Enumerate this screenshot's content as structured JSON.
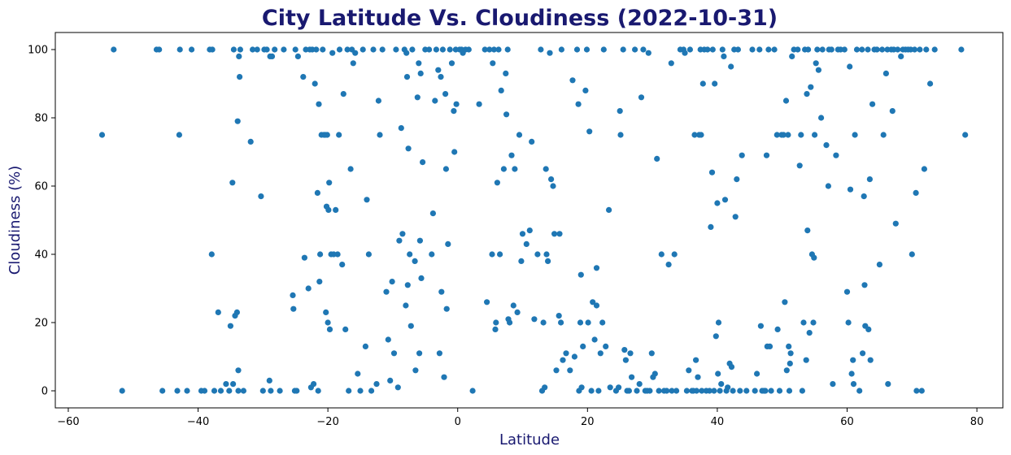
{
  "chart_data": {
    "type": "scatter",
    "title": "City Latitude Vs. Cloudiness (2022-10-31)",
    "xlabel": "Latitude",
    "ylabel": "Cloudiness (%)",
    "xlim": [
      -62,
      84
    ],
    "ylim": [
      -5,
      105
    ],
    "xticks": [
      -60,
      -40,
      -20,
      0,
      20,
      40,
      60,
      80
    ],
    "yticks": [
      0,
      20,
      40,
      60,
      80,
      100
    ],
    "grid": false,
    "marker_color": "#1f77b4",
    "points": [
      [
        -54.8,
        75
      ],
      [
        -53,
        100
      ],
      [
        -51.7,
        0
      ],
      [
        -46.4,
        100
      ],
      [
        -46,
        100
      ],
      [
        -45.5,
        0
      ],
      [
        -43.2,
        0
      ],
      [
        -42.9,
        75
      ],
      [
        -42.8,
        100
      ],
      [
        -41.7,
        0
      ],
      [
        -41,
        100
      ],
      [
        -39.5,
        0
      ],
      [
        -39,
        0
      ],
      [
        -38.2,
        100
      ],
      [
        -37.8,
        100
      ],
      [
        -37.9,
        40
      ],
      [
        -37.5,
        0
      ],
      [
        -36.9,
        23
      ],
      [
        -36.5,
        0
      ],
      [
        -35.7,
        2
      ],
      [
        -35.2,
        0
      ],
      [
        -35,
        19
      ],
      [
        -34.7,
        61
      ],
      [
        -34.5,
        100
      ],
      [
        -34.3,
        22
      ],
      [
        -34,
        23
      ],
      [
        -33.9,
        79
      ],
      [
        -33.6,
        92
      ],
      [
        -33.8,
        6
      ],
      [
        -33.7,
        98
      ],
      [
        -33.8,
        0
      ],
      [
        -33.5,
        100
      ],
      [
        -33,
        0
      ],
      [
        -34.6,
        2
      ],
      [
        -31.9,
        73
      ],
      [
        -31.6,
        100
      ],
      [
        -30.9,
        100
      ],
      [
        -30.3,
        57
      ],
      [
        -30,
        0
      ],
      [
        -29.8,
        100
      ],
      [
        -29.4,
        100
      ],
      [
        -29,
        3
      ],
      [
        -28.9,
        98
      ],
      [
        -28.8,
        0
      ],
      [
        -28.6,
        98
      ],
      [
        -28.2,
        100
      ],
      [
        -27.4,
        0
      ],
      [
        -26.8,
        100
      ],
      [
        -25.4,
        28
      ],
      [
        -25.3,
        24
      ],
      [
        -25.1,
        0
      ],
      [
        -25,
        100
      ],
      [
        -24.8,
        0
      ],
      [
        -24.6,
        98
      ],
      [
        -23.8,
        92
      ],
      [
        -23.6,
        39
      ],
      [
        -23.4,
        100
      ],
      [
        -23,
        30
      ],
      [
        -22.8,
        100
      ],
      [
        -22.6,
        1
      ],
      [
        -22.4,
        100
      ],
      [
        -22.2,
        2
      ],
      [
        -22,
        90
      ],
      [
        -21.8,
        100
      ],
      [
        -21.5,
        0
      ],
      [
        -21.6,
        58
      ],
      [
        -21.4,
        84
      ],
      [
        -21.3,
        32
      ],
      [
        -21.2,
        40
      ],
      [
        -21,
        75
      ],
      [
        -20.8,
        100
      ],
      [
        -20.6,
        75
      ],
      [
        -20.4,
        75
      ],
      [
        -20.3,
        23
      ],
      [
        -20.2,
        54
      ],
      [
        -20.1,
        75
      ],
      [
        -20.0,
        20
      ],
      [
        -19.9,
        53
      ],
      [
        -19.8,
        61
      ],
      [
        -19.7,
        18
      ],
      [
        -19.5,
        40
      ],
      [
        -19.3,
        99
      ],
      [
        -19.1,
        40
      ],
      [
        -18.8,
        53
      ],
      [
        -18.5,
        40
      ],
      [
        -18.3,
        75
      ],
      [
        -18.2,
        100
      ],
      [
        -17.8,
        37
      ],
      [
        -17.6,
        87
      ],
      [
        -17.3,
        18
      ],
      [
        -17,
        100
      ],
      [
        -16.8,
        0
      ],
      [
        -16.5,
        65
      ],
      [
        -16.3,
        100
      ],
      [
        -16.1,
        96
      ],
      [
        -15.8,
        99
      ],
      [
        -15.4,
        5
      ],
      [
        -15,
        0
      ],
      [
        -14.6,
        100
      ],
      [
        -14.2,
        13
      ],
      [
        -14.0,
        56
      ],
      [
        -13.7,
        40
      ],
      [
        -13.3,
        0
      ],
      [
        -13,
        100
      ],
      [
        -12.5,
        2
      ],
      [
        -12.2,
        85
      ],
      [
        -12,
        75
      ],
      [
        -11.6,
        100
      ],
      [
        -11,
        29
      ],
      [
        -10.7,
        15
      ],
      [
        -10.4,
        3
      ],
      [
        -10.1,
        32
      ],
      [
        -9.8,
        11
      ],
      [
        -9.5,
        100
      ],
      [
        -9.2,
        1
      ],
      [
        -9,
        44
      ],
      [
        -8.7,
        77
      ],
      [
        -8.5,
        46
      ],
      [
        -8.2,
        100
      ],
      [
        -8.0,
        25
      ],
      [
        -7.9,
        99
      ],
      [
        -7.8,
        92
      ],
      [
        -7.7,
        31
      ],
      [
        -7.6,
        71
      ],
      [
        -7.4,
        40
      ],
      [
        -7.2,
        19
      ],
      [
        -7,
        100
      ],
      [
        -6.6,
        38
      ],
      [
        -6.5,
        6
      ],
      [
        -6.2,
        86
      ],
      [
        -6.0,
        96
      ],
      [
        -5.9,
        11
      ],
      [
        -5.8,
        44
      ],
      [
        -5.7,
        93
      ],
      [
        -5.6,
        33
      ],
      [
        -5.4,
        67
      ],
      [
        -5,
        100
      ],
      [
        -4.4,
        100
      ],
      [
        -4.0,
        40
      ],
      [
        -3.8,
        52
      ],
      [
        -3.5,
        85
      ],
      [
        -3.3,
        100
      ],
      [
        -3.0,
        94
      ],
      [
        -2.8,
        11
      ],
      [
        -2.6,
        92
      ],
      [
        -2.5,
        29
      ],
      [
        -2.3,
        100
      ],
      [
        -2.1,
        4
      ],
      [
        -1.9,
        87
      ],
      [
        -1.8,
        65
      ],
      [
        -1.7,
        24
      ],
      [
        -1.5,
        43
      ],
      [
        -1.2,
        100
      ],
      [
        -0.9,
        96
      ],
      [
        -0.6,
        82
      ],
      [
        -0.5,
        70
      ],
      [
        -0.3,
        100
      ],
      [
        -0.2,
        84
      ],
      [
        0.3,
        100
      ],
      [
        0.6,
        100
      ],
      [
        0.8,
        99
      ],
      [
        1.2,
        100
      ],
      [
        1.7,
        100
      ],
      [
        2.3,
        0
      ],
      [
        3.3,
        84
      ],
      [
        4.2,
        100
      ],
      [
        4.5,
        26
      ],
      [
        4.9,
        100
      ],
      [
        5.3,
        40
      ],
      [
        5.4,
        96
      ],
      [
        5.6,
        100
      ],
      [
        5.8,
        18
      ],
      [
        5.9,
        20
      ],
      [
        6.1,
        61
      ],
      [
        6.3,
        100
      ],
      [
        6.5,
        40
      ],
      [
        6.7,
        88
      ],
      [
        7.1,
        65
      ],
      [
        7.4,
        93
      ],
      [
        7.5,
        81
      ],
      [
        7.7,
        100
      ],
      [
        7.8,
        21
      ],
      [
        8.0,
        20
      ],
      [
        8.3,
        69
      ],
      [
        8.6,
        25
      ],
      [
        8.8,
        65
      ],
      [
        9.2,
        23
      ],
      [
        9.5,
        75
      ],
      [
        9.8,
        38
      ],
      [
        10.0,
        46
      ],
      [
        10.6,
        43
      ],
      [
        11.1,
        47
      ],
      [
        11.4,
        73
      ],
      [
        11.8,
        21
      ],
      [
        12.3,
        40
      ],
      [
        12.8,
        100
      ],
      [
        13,
        0
      ],
      [
        13.2,
        20
      ],
      [
        13.4,
        1
      ],
      [
        13.6,
        65
      ],
      [
        13.7,
        40
      ],
      [
        13.9,
        38
      ],
      [
        14.2,
        99
      ],
      [
        14.4,
        62
      ],
      [
        14.7,
        60
      ],
      [
        14.9,
        46
      ],
      [
        15.2,
        6
      ],
      [
        15.6,
        22
      ],
      [
        15.7,
        46
      ],
      [
        15.9,
        20
      ],
      [
        16.0,
        100
      ],
      [
        16.2,
        9
      ],
      [
        16.7,
        11
      ],
      [
        17.3,
        6
      ],
      [
        17.7,
        91
      ],
      [
        18.0,
        10
      ],
      [
        18.4,
        100
      ],
      [
        18.6,
        84
      ],
      [
        18.7,
        0
      ],
      [
        18.9,
        20
      ],
      [
        19.0,
        34
      ],
      [
        19.1,
        1
      ],
      [
        19.3,
        13
      ],
      [
        19.7,
        88
      ],
      [
        19.9,
        100
      ],
      [
        20.1,
        20
      ],
      [
        20.3,
        76
      ],
      [
        20.6,
        0
      ],
      [
        20.8,
        26
      ],
      [
        21.1,
        15
      ],
      [
        21.4,
        36
      ],
      [
        21.4,
        25
      ],
      [
        21.7,
        0
      ],
      [
        22.0,
        11
      ],
      [
        22.3,
        20
      ],
      [
        22.5,
        100
      ],
      [
        22.8,
        13
      ],
      [
        23.3,
        53
      ],
      [
        23.5,
        1
      ],
      [
        24.4,
        0
      ],
      [
        24.8,
        1
      ],
      [
        25.0,
        82
      ],
      [
        25.1,
        75
      ],
      [
        25.5,
        100
      ],
      [
        25.7,
        12
      ],
      [
        25.9,
        9
      ],
      [
        26.1,
        0
      ],
      [
        26.4,
        0
      ],
      [
        26.6,
        11
      ],
      [
        26.8,
        4
      ],
      [
        27.3,
        100
      ],
      [
        27.6,
        0
      ],
      [
        28.0,
        2
      ],
      [
        28.3,
        86
      ],
      [
        28.6,
        100
      ],
      [
        28.9,
        0
      ],
      [
        29.2,
        0
      ],
      [
        29.4,
        99
      ],
      [
        29.6,
        0
      ],
      [
        29.9,
        11
      ],
      [
        30.1,
        4
      ],
      [
        30.4,
        5
      ],
      [
        30.7,
        68
      ],
      [
        31.0,
        0
      ],
      [
        31.4,
        40
      ],
      [
        31.8,
        0
      ],
      [
        32.2,
        0
      ],
      [
        32.5,
        37
      ],
      [
        32.9,
        96
      ],
      [
        33.0,
        0
      ],
      [
        33.4,
        40
      ],
      [
        33.7,
        0
      ],
      [
        34.3,
        100
      ],
      [
        34.8,
        100
      ],
      [
        35.0,
        99
      ],
      [
        35.3,
        0
      ],
      [
        35.6,
        6
      ],
      [
        35.8,
        100
      ],
      [
        36.1,
        0
      ],
      [
        36.3,
        0
      ],
      [
        36.5,
        75
      ],
      [
        36.7,
        9
      ],
      [
        36.8,
        0
      ],
      [
        37.0,
        4
      ],
      [
        37.2,
        75
      ],
      [
        37.4,
        100
      ],
      [
        37.5,
        75
      ],
      [
        37.6,
        0
      ],
      [
        37.8,
        90
      ],
      [
        38.0,
        100
      ],
      [
        38.3,
        0
      ],
      [
        38.5,
        100
      ],
      [
        38.8,
        0
      ],
      [
        39.0,
        48
      ],
      [
        39.2,
        64
      ],
      [
        39.3,
        100
      ],
      [
        39.5,
        0
      ],
      [
        39.6,
        90
      ],
      [
        39.8,
        16
      ],
      [
        40.0,
        55
      ],
      [
        40.1,
        5
      ],
      [
        40.2,
        20
      ],
      [
        40.4,
        0
      ],
      [
        40.6,
        2
      ],
      [
        40.8,
        100
      ],
      [
        41.0,
        98
      ],
      [
        41.2,
        56
      ],
      [
        41.4,
        0
      ],
      [
        41.6,
        1
      ],
      [
        41.9,
        8
      ],
      [
        42.1,
        95
      ],
      [
        42.2,
        7
      ],
      [
        42.4,
        0
      ],
      [
        42.6,
        100
      ],
      [
        42.8,
        51
      ],
      [
        43.0,
        62
      ],
      [
        43.2,
        100
      ],
      [
        43.5,
        0
      ],
      [
        43.8,
        69
      ],
      [
        44.5,
        0
      ],
      [
        45.4,
        100
      ],
      [
        45.8,
        0
      ],
      [
        46.1,
        5
      ],
      [
        46.5,
        100
      ],
      [
        46.7,
        19
      ],
      [
        46.9,
        0
      ],
      [
        47.2,
        0
      ],
      [
        47.4,
        0
      ],
      [
        47.6,
        69
      ],
      [
        47.7,
        13
      ],
      [
        47.9,
        100
      ],
      [
        48.1,
        13
      ],
      [
        48.3,
        0
      ],
      [
        48.8,
        100
      ],
      [
        49.2,
        75
      ],
      [
        49.3,
        18
      ],
      [
        49.6,
        0
      ],
      [
        49.9,
        75
      ],
      [
        50.2,
        75
      ],
      [
        50.4,
        26
      ],
      [
        50.6,
        85
      ],
      [
        50.7,
        6
      ],
      [
        50.9,
        75
      ],
      [
        51.0,
        13
      ],
      [
        51.1,
        0
      ],
      [
        51.2,
        8
      ],
      [
        51.3,
        11
      ],
      [
        51.5,
        98
      ],
      [
        51.8,
        100
      ],
      [
        52.4,
        100
      ],
      [
        52.7,
        66
      ],
      [
        52.9,
        75
      ],
      [
        53.1,
        0
      ],
      [
        53.3,
        20
      ],
      [
        53.5,
        100
      ],
      [
        53.7,
        9
      ],
      [
        53.8,
        87
      ],
      [
        53.9,
        47
      ],
      [
        54.0,
        100
      ],
      [
        54.2,
        17
      ],
      [
        54.4,
        89
      ],
      [
        54.6,
        40
      ],
      [
        54.8,
        20
      ],
      [
        54.9,
        39
      ],
      [
        55.0,
        75
      ],
      [
        55.2,
        96
      ],
      [
        55.4,
        100
      ],
      [
        55.6,
        94
      ],
      [
        56.0,
        80
      ],
      [
        56.2,
        100
      ],
      [
        56.8,
        72
      ],
      [
        57.1,
        60
      ],
      [
        57.2,
        100
      ],
      [
        57.6,
        100
      ],
      [
        57.8,
        2
      ],
      [
        58.3,
        69
      ],
      [
        58.6,
        100
      ],
      [
        59.0,
        100
      ],
      [
        59.6,
        100
      ],
      [
        60.0,
        29
      ],
      [
        60.2,
        20
      ],
      [
        60.4,
        95
      ],
      [
        60.5,
        59
      ],
      [
        60.7,
        5
      ],
      [
        60.9,
        9
      ],
      [
        61.0,
        2
      ],
      [
        61.2,
        75
      ],
      [
        61.5,
        100
      ],
      [
        61.9,
        0
      ],
      [
        62.3,
        100
      ],
      [
        62.4,
        11
      ],
      [
        62.6,
        57
      ],
      [
        62.7,
        31
      ],
      [
        62.8,
        19
      ],
      [
        63.2,
        100
      ],
      [
        63.3,
        18
      ],
      [
        63.5,
        62
      ],
      [
        63.6,
        9
      ],
      [
        63.9,
        84
      ],
      [
        64.2,
        100
      ],
      [
        64.6,
        100
      ],
      [
        65.0,
        37
      ],
      [
        65.4,
        100
      ],
      [
        65.6,
        75
      ],
      [
        66.0,
        93
      ],
      [
        66.2,
        100
      ],
      [
        66.3,
        2
      ],
      [
        66.8,
        100
      ],
      [
        67.0,
        82
      ],
      [
        67.2,
        100
      ],
      [
        67.5,
        49
      ],
      [
        67.8,
        100
      ],
      [
        68.3,
        98
      ],
      [
        68.6,
        100
      ],
      [
        69.0,
        100
      ],
      [
        69.4,
        100
      ],
      [
        69.8,
        100
      ],
      [
        70.0,
        40
      ],
      [
        70.4,
        100
      ],
      [
        70.6,
        58
      ],
      [
        70.7,
        0
      ],
      [
        71.2,
        100
      ],
      [
        71.5,
        0
      ],
      [
        71.9,
        65
      ],
      [
        72.2,
        100
      ],
      [
        72.8,
        90
      ],
      [
        73.5,
        100
      ],
      [
        77.6,
        100
      ],
      [
        78.2,
        75
      ]
    ]
  }
}
